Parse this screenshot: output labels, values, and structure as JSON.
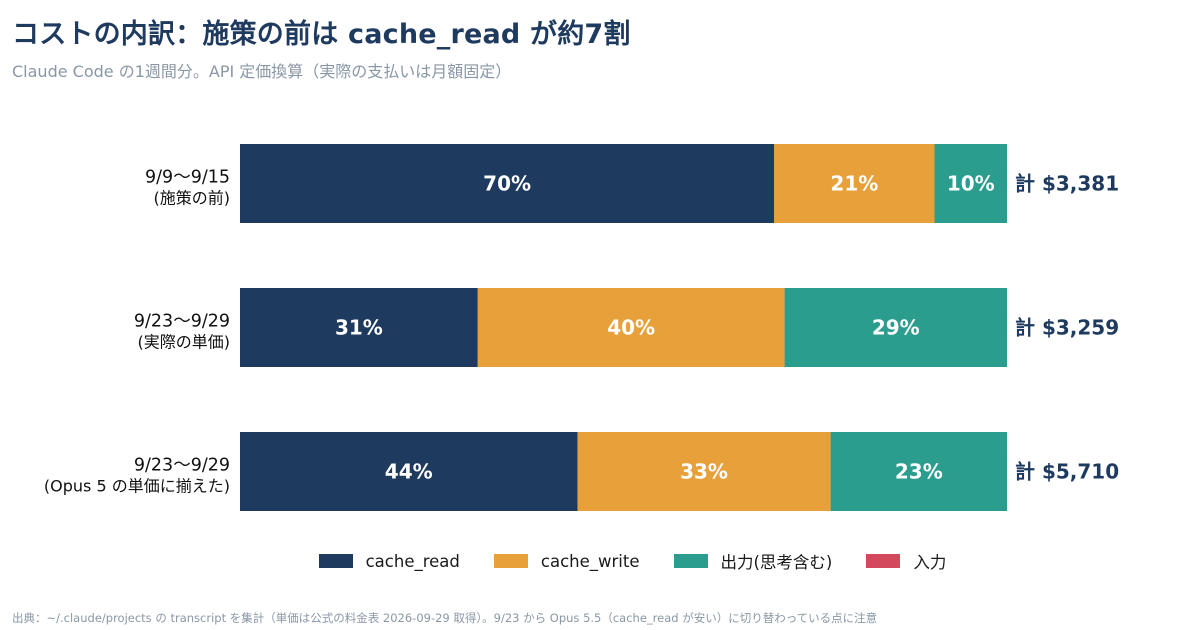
{
  "title": "コストの内訳：施策の前は cache_read が約7割",
  "subtitle": "Claude Code の1週間分。API 定価換算（実際の支払いは月額固定）",
  "source": "出典：~/.claude/projects の transcript を集計（単価は公式の料金表 2026-09-29 取得）。9/23 から Opus 5.5（cache_read が安い）に切り替わっている点に注意",
  "colors": {
    "cache_read": "#1f3a5f",
    "cache_write": "#e8a13a",
    "output": "#2a9d8f",
    "input": "#d1495b"
  },
  "legend": [
    {
      "key": "cache_read",
      "label": "cache_read"
    },
    {
      "key": "cache_write",
      "label": "cache_write"
    },
    {
      "key": "output",
      "label": "出力(思考含む)"
    },
    {
      "key": "input",
      "label": "入力"
    }
  ],
  "chart_data": {
    "type": "bar",
    "orientation": "horizontal",
    "stacked": true,
    "normalized_percent": true,
    "xlim": [
      0,
      100
    ],
    "categories": [
      {
        "line1": "9/9〜9/15",
        "line2": "(施策の前)",
        "total": "計 $3,381"
      },
      {
        "line1": "9/23〜9/29",
        "line2": "(実際の単価)",
        "total": "計 $3,259"
      },
      {
        "line1": "9/23〜9/29",
        "line2": "(Opus 5 の単価に揃えた)",
        "total": "計 $5,710"
      }
    ],
    "series": [
      {
        "name": "cache_read",
        "key": "cache_read",
        "values": [
          70,
          31,
          44
        ],
        "labels": [
          "70%",
          "31%",
          "44%"
        ]
      },
      {
        "name": "cache_write",
        "key": "cache_write",
        "values": [
          21,
          40,
          33
        ],
        "labels": [
          "21%",
          "40%",
          "33%"
        ]
      },
      {
        "name": "出力(思考含む)",
        "key": "output",
        "values": [
          9.5,
          29,
          23
        ],
        "labels": [
          "10%",
          "29%",
          "23%"
        ]
      },
      {
        "name": "入力",
        "key": "input",
        "values": [
          0,
          0,
          0
        ],
        "labels": [
          "",
          "",
          ""
        ]
      }
    ]
  }
}
